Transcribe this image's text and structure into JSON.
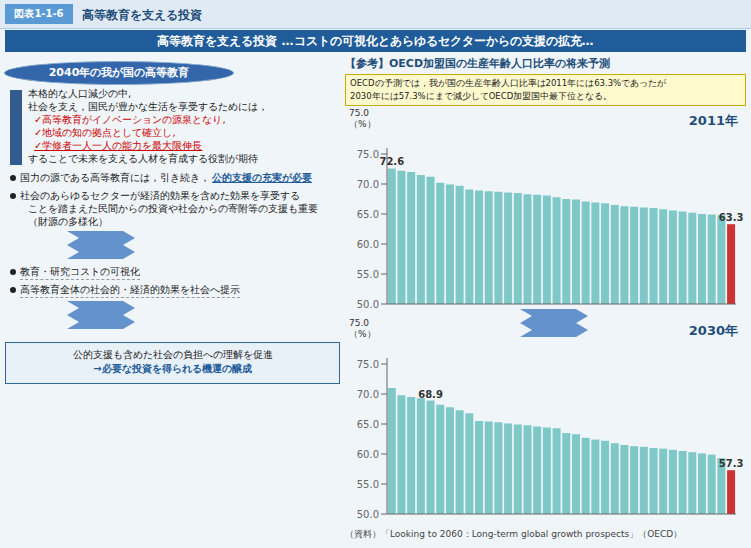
{
  "title": "高等教育を支える投資 …コストの可視化とあらゆるセクターからの支援の拡充…",
  "annotations": [
    "図表1-1-6",
    "高等教育を支える投資",
    "2040年の我が国の高等教育",
    "本格的な人口減少の中,",
    "社会を支え，国民が豊かな生活を享受するためには，",
    "✓高等教育がイノベーションの源泉となり,",
    "✓地域の知の拠点として確立し,",
    "✓学修者一人一人の能力を最大限伸長",
    "することで未来を支える人材を育成する役割が期待",
    "国力の源である高等教育には，引き続き，",
    "公的支援の充実が必要",
    "社会のあらゆるセクターが経済的効果を含めた効果を享受する",
    "ことを踏まえた民間からの投資や社会からの寄附等の支援も重要",
    "（財源の多様化）",
    "教育・研究コストの可視化",
    "高等教育全体の社会的・経済的効果を社会へ提示",
    "公的支援も含めた社会の負担への理解を促進",
    "→必要な投資を得られる機運の醸成",
    "【参考】OECD加盟国の生産年齢人口比率の将来予測",
    "OECDの予測では，我が国の生産年齢人口比率は2011年には63.3%であったが\n2030年には57.3%にまで減少してOECD加盟国中最下位となる。",
    "（資料）「Looking to 2060：Long-term global growth prospects」（OECD）"
  ],
  "chart_data": [
    {
      "type": "bar",
      "title": "2011年",
      "annotations": [
        "75.0\n（%）"
      ],
      "categories": [
        null,
        null,
        null,
        null,
        null,
        null,
        null,
        null,
        null,
        null,
        null,
        null,
        null,
        null,
        null,
        null,
        null,
        null,
        null,
        null,
        null,
        null,
        null,
        null,
        null,
        null,
        null,
        null,
        null,
        null,
        null,
        null,
        null,
        null,
        null,
        null
      ],
      "values": [
        72.6,
        72.2,
        72.0,
        71.5,
        71.2,
        70.2,
        69.9,
        69.7,
        69.1,
        68.9,
        68.8,
        68.7,
        68.6,
        68.5,
        68.3,
        68.2,
        68.1,
        67.8,
        67.5,
        67.4,
        67.1,
        66.9,
        66.8,
        66.5,
        66.3,
        66.2,
        66.1,
        66.0,
        65.8,
        65.6,
        65.4,
        65.2,
        65.0,
        64.9,
        64.8,
        63.3
      ],
      "value_labels": [
        "72.6",
        null,
        null,
        null,
        null,
        null,
        null,
        null,
        null,
        null,
        null,
        null,
        null,
        null,
        null,
        null,
        null,
        null,
        null,
        null,
        null,
        null,
        null,
        null,
        null,
        null,
        null,
        null,
        null,
        null,
        null,
        null,
        null,
        null,
        null,
        "63.3"
      ],
      "colors": [
        "#7EC8C8",
        "#7EC8C8",
        "#7EC8C8",
        "#7EC8C8",
        "#7EC8C8",
        "#7EC8C8",
        "#7EC8C8",
        "#7EC8C8",
        "#7EC8C8",
        "#7EC8C8",
        "#7EC8C8",
        "#7EC8C8",
        "#7EC8C8",
        "#7EC8C8",
        "#7EC8C8",
        "#7EC8C8",
        "#7EC8C8",
        "#7EC8C8",
        "#7EC8C8",
        "#7EC8C8",
        "#7EC8C8",
        "#7EC8C8",
        "#7EC8C8",
        "#7EC8C8",
        "#7EC8C8",
        "#7EC8C8",
        "#7EC8C8",
        "#7EC8C8",
        "#7EC8C8",
        "#7EC8C8",
        "#7EC8C8",
        "#7EC8C8",
        "#7EC8C8",
        "#7EC8C8",
        "#7EC8C8",
        "#CC3333"
      ],
      "ylim": [
        50,
        76
      ],
      "yticks": [
        {
          "value": 50,
          "label": "50.0"
        },
        {
          "value": 55,
          "label": "55.0"
        },
        {
          "value": 60,
          "label": "60.0"
        },
        {
          "value": 65,
          "label": "65.0"
        },
        {
          "value": 70,
          "label": "70.0"
        },
        {
          "value": 75,
          "label": "75.0"
        }
      ],
      "tick_labels": "y",
      "grid": false
    },
    {
      "type": "bar",
      "title": "2030年",
      "annotations": [
        "75.0\n（%）"
      ],
      "categories": [
        null,
        null,
        null,
        null,
        null,
        null,
        null,
        null,
        null,
        null,
        null,
        null,
        null,
        null,
        null,
        null,
        null,
        null,
        null,
        null,
        null,
        null,
        null,
        null,
        null,
        null,
        null,
        null,
        null,
        null,
        null,
        null,
        null,
        null,
        null,
        null
      ],
      "values": [
        71.0,
        69.8,
        69.5,
        69.3,
        68.9,
        68.2,
        67.8,
        67.3,
        66.8,
        65.5,
        65.4,
        65.3,
        65.1,
        64.9,
        64.8,
        64.6,
        64.4,
        64.3,
        63.5,
        63.3,
        62.7,
        62.4,
        62.2,
        61.8,
        61.5,
        61.3,
        61.2,
        61.0,
        60.9,
        60.7,
        60.5,
        60.3,
        60.1,
        59.9,
        59.3,
        57.3
      ],
      "value_labels": [
        null,
        null,
        null,
        null,
        "68.9",
        null,
        null,
        null,
        null,
        null,
        null,
        null,
        null,
        null,
        null,
        null,
        null,
        null,
        null,
        null,
        null,
        null,
        null,
        null,
        null,
        null,
        null,
        null,
        null,
        null,
        null,
        null,
        null,
        null,
        null,
        "57.3"
      ],
      "colors": [
        "#7EC8C8",
        "#7EC8C8",
        "#7EC8C8",
        "#7EC8C8",
        "#7EC8C8",
        "#7EC8C8",
        "#7EC8C8",
        "#7EC8C8",
        "#7EC8C8",
        "#7EC8C8",
        "#7EC8C8",
        "#7EC8C8",
        "#7EC8C8",
        "#7EC8C8",
        "#7EC8C8",
        "#7EC8C8",
        "#7EC8C8",
        "#7EC8C8",
        "#7EC8C8",
        "#7EC8C8",
        "#7EC8C8",
        "#7EC8C8",
        "#7EC8C8",
        "#7EC8C8",
        "#7EC8C8",
        "#7EC8C8",
        "#7EC8C8",
        "#7EC8C8",
        "#7EC8C8",
        "#7EC8C8",
        "#7EC8C8",
        "#7EC8C8",
        "#7EC8C8",
        "#7EC8C8",
        "#7EC8C8",
        "#CC3333"
      ],
      "ylim": [
        50,
        76
      ],
      "yticks": [
        {
          "value": 50,
          "label": "50.0"
        },
        {
          "value": 55,
          "label": "55.0"
        },
        {
          "value": 60,
          "label": "60.0"
        },
        {
          "value": 65,
          "label": "65.0"
        },
        {
          "value": 70,
          "label": "70.0"
        },
        {
          "value": 75,
          "label": "75.0"
        }
      ],
      "tick_labels": "y",
      "grid": false
    }
  ]
}
